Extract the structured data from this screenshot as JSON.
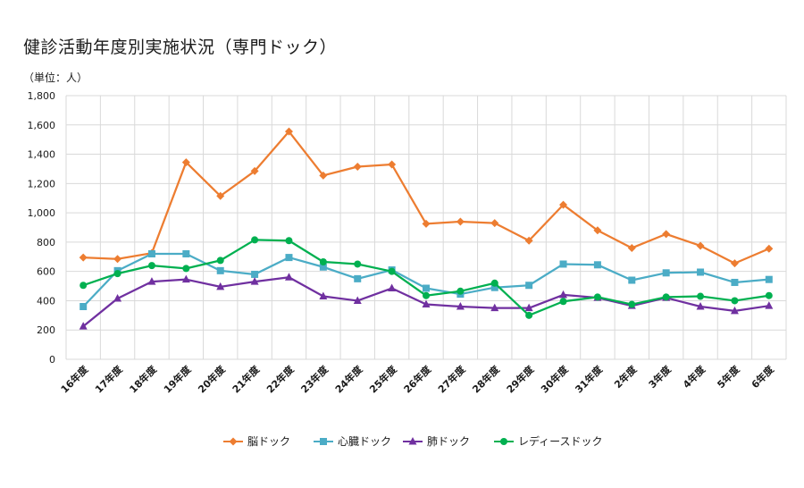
{
  "title": "健診活動年度別実施状況（専門ドック）",
  "unit_label": "（単位：人）",
  "chart_data": {
    "type": "line",
    "title": "健診活動年度別実施状況（専門ドック）",
    "ylabel": "（単位：人）",
    "ylim": [
      0,
      1800
    ],
    "ytick_step": 200,
    "yticks": [
      "0",
      "200",
      "400",
      "600",
      "800",
      "1,000",
      "1,200",
      "1,400",
      "1,600",
      "1,800"
    ],
    "grid": true,
    "legend_position": "bottom",
    "categories": [
      "16年度",
      "17年度",
      "18年度",
      "19年度",
      "20年度",
      "21年度",
      "22年度",
      "23年度",
      "24年度",
      "25年度",
      "26年度",
      "27年度",
      "28年度",
      "29年度",
      "30年度",
      "31年度",
      "2年度",
      "3年度",
      "4年度",
      "5年度",
      "6年度"
    ],
    "series": [
      {
        "name": "脳ドック",
        "color": "#ED7D31",
        "marker": "diamond",
        "values": [
          695,
          685,
          725,
          1345,
          1115,
          1285,
          1555,
          1255,
          1315,
          1330,
          925,
          940,
          930,
          810,
          1055,
          880,
          760,
          855,
          775,
          655,
          755
        ]
      },
      {
        "name": "心臓ドック",
        "color": "#4BACC6",
        "marker": "square",
        "values": [
          360,
          605,
          720,
          720,
          605,
          580,
          695,
          630,
          550,
          610,
          485,
          445,
          490,
          505,
          650,
          645,
          540,
          590,
          595,
          525,
          545
        ]
      },
      {
        "name": "肺ドック",
        "color": "#7030A0",
        "marker": "triangle",
        "values": [
          225,
          415,
          530,
          545,
          495,
          530,
          560,
          430,
          400,
          485,
          375,
          360,
          350,
          350,
          440,
          420,
          365,
          420,
          360,
          330,
          365
        ]
      },
      {
        "name": "レディースドック",
        "color": "#00B050",
        "marker": "circle",
        "values": [
          505,
          585,
          640,
          620,
          675,
          815,
          810,
          665,
          650,
          600,
          435,
          465,
          520,
          300,
          395,
          425,
          375,
          425,
          430,
          400,
          435
        ]
      }
    ]
  }
}
